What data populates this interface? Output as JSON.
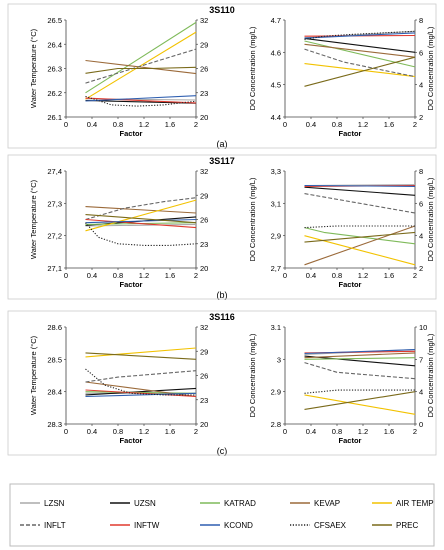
{
  "figure": {
    "panels": [
      {
        "title": "3S110",
        "label": "(a)"
      },
      {
        "title": "3S117",
        "label": "(b)"
      },
      {
        "title": "3S116",
        "label": "(c)"
      }
    ],
    "legend_title": "",
    "legend": [
      {
        "name": "LZSN",
        "color": "#aaaaaa",
        "dash": "solid"
      },
      {
        "name": "UZSN",
        "color": "#111111",
        "dash": "solid"
      },
      {
        "name": "KATRAD",
        "color": "#7fba5a",
        "dash": "solid"
      },
      {
        "name": "KEVAP",
        "color": "#9b6a3a",
        "dash": "solid"
      },
      {
        "name": "AIR TEMP",
        "color": "#f2c200",
        "dash": "solid"
      },
      {
        "name": "INFLT",
        "color": "#666666",
        "dash": "dashed"
      },
      {
        "name": "INFTW",
        "color": "#e03a2f",
        "dash": "solid"
      },
      {
        "name": "KCOND",
        "color": "#2f5fb0",
        "dash": "solid"
      },
      {
        "name": "CFSAEX",
        "color": "#222222",
        "dash": "dotted"
      },
      {
        "name": "PREC",
        "color": "#7a6a1a",
        "dash": "solid"
      }
    ]
  },
  "chart_data": [
    {
      "type": "line",
      "panel": "3S110",
      "side": "left",
      "xlabel": "Factor",
      "ylabel": "Water Temperature (°C)",
      "y2label": "",
      "xlim": [
        0,
        2
      ],
      "xticks": [
        "0",
        "0.4",
        "0.8",
        "1.2",
        "1.6",
        "2"
      ],
      "ylim": [
        26.1,
        26.5
      ],
      "yticks": [
        "26.1",
        "26.2",
        "26.3",
        "26.4",
        "26.5"
      ],
      "y2lim": [
        20,
        32
      ],
      "y2ticks": [
        "20",
        "23",
        "26",
        "29",
        "32"
      ],
      "x": [
        0.3,
        2
      ],
      "series": [
        {
          "name": "LZSN",
          "axis": "left",
          "values": [
            26.175,
            26.17
          ]
        },
        {
          "name": "UZSN",
          "axis": "left",
          "values": [
            26.168,
            26.157
          ]
        },
        {
          "name": "KATRAD",
          "axis": "left",
          "values": [
            26.2,
            26.49
          ]
        },
        {
          "name": "KEVAP",
          "axis": "left",
          "values": [
            26.333,
            26.279
          ]
        },
        {
          "name": "AIR TEMP",
          "axis": "right",
          "values": [
            22.2,
            30.5
          ]
        },
        {
          "name": "INFLT",
          "axis": "left",
          "values": [
            26.24,
            26.38
          ]
        },
        {
          "name": "INFTW",
          "axis": "left",
          "values": [
            26.178,
            26.158
          ]
        },
        {
          "name": "KCOND",
          "axis": "left",
          "values": [
            26.166,
            26.188
          ]
        },
        {
          "name": "CFSAEX",
          "axis": "left",
          "x": [
            0.3,
            0.7,
            1.1,
            1.5,
            2
          ],
          "values": [
            26.185,
            26.15,
            26.145,
            26.15,
            26.165
          ]
        },
        {
          "name": "PREC",
          "axis": "left",
          "x": [
            0.3,
            0.8,
            1.3,
            2
          ],
          "values": [
            26.28,
            26.3,
            26.3,
            26.305
          ]
        }
      ]
    },
    {
      "type": "line",
      "panel": "3S110",
      "side": "right",
      "xlabel": "Factor",
      "ylabel": "DO Concentration (mg/L)",
      "y2label": "DO Concentration (mg/L)",
      "xlim": [
        0,
        2
      ],
      "xticks": [
        "0",
        "0.4",
        "0.8",
        "1.2",
        "1.6",
        "2"
      ],
      "ylim": [
        4.4,
        4.7
      ],
      "yticks": [
        "4.4",
        "4.5",
        "4.6",
        "4.7"
      ],
      "y2lim": [
        2,
        8
      ],
      "y2ticks": [
        "2",
        "4",
        "6",
        "8"
      ],
      "x": [
        0.3,
        2
      ],
      "series": [
        {
          "name": "LZSN",
          "axis": "left",
          "values": [
            4.645,
            4.665
          ]
        },
        {
          "name": "UZSN",
          "axis": "left",
          "values": [
            4.643,
            4.6
          ]
        },
        {
          "name": "KATRAD",
          "axis": "left",
          "values": [
            4.635,
            4.555
          ]
        },
        {
          "name": "KEVAP",
          "axis": "left",
          "values": [
            4.625,
            4.585
          ]
        },
        {
          "name": "AIR TEMP",
          "axis": "left",
          "values": [
            4.565,
            4.525
          ]
        },
        {
          "name": "INFLT",
          "axis": "left",
          "x": [
            0.3,
            0.9,
            1.5,
            2
          ],
          "values": [
            4.61,
            4.57,
            4.545,
            4.525
          ]
        },
        {
          "name": "INFTW",
          "axis": "left",
          "values": [
            4.65,
            4.652
          ]
        },
        {
          "name": "KCOND",
          "axis": "left",
          "values": [
            4.644,
            4.66
          ]
        },
        {
          "name": "CFSAEX",
          "axis": "left",
          "x": [
            0.3,
            0.6,
            1,
            1.5,
            2
          ],
          "values": [
            4.64,
            4.65,
            4.655,
            4.66,
            4.665
          ]
        },
        {
          "name": "PREC",
          "axis": "left",
          "values": [
            4.495,
            4.585
          ]
        }
      ]
    },
    {
      "type": "line",
      "panel": "3S117",
      "side": "left",
      "xlabel": "Factor",
      "ylabel": "Water Temperature (°C)",
      "y2label": "",
      "xlim": [
        0,
        2
      ],
      "xticks": [
        "0",
        "0.4",
        "0.8",
        "1.2",
        "1.6",
        "2"
      ],
      "ylim": [
        27.1,
        27.4
      ],
      "yticks": [
        "27,1",
        "27,2",
        "27,3",
        "27,4"
      ],
      "y2lim": [
        20,
        32
      ],
      "y2ticks": [
        "20",
        "23",
        "26",
        "29",
        "32"
      ],
      "x": [
        0.3,
        2
      ],
      "series": [
        {
          "name": "LZSN",
          "axis": "left",
          "values": [
            27.23,
            27.235
          ]
        },
        {
          "name": "UZSN",
          "axis": "left",
          "values": [
            27.232,
            27.258
          ]
        },
        {
          "name": "KATRAD",
          "axis": "left",
          "values": [
            27.235,
            27.24
          ]
        },
        {
          "name": "KEVAP",
          "axis": "left",
          "values": [
            27.29,
            27.27
          ]
        },
        {
          "name": "AIR TEMP",
          "axis": "right",
          "values": [
            24.6,
            28.4
          ]
        },
        {
          "name": "INFLT",
          "axis": "right",
          "x": [
            0.3,
            0.9,
            1.5,
            2
          ],
          "values": [
            26.0,
            27.4,
            28.2,
            28.7
          ]
        },
        {
          "name": "INFTW",
          "axis": "left",
          "values": [
            27.25,
            27.225
          ]
        },
        {
          "name": "KCOND",
          "axis": "left",
          "values": [
            27.24,
            27.25
          ]
        },
        {
          "name": "CFSAEX",
          "axis": "left",
          "x": [
            0.3,
            0.5,
            0.8,
            1.2,
            1.6,
            2
          ],
          "values": [
            27.24,
            27.195,
            27.175,
            27.17,
            27.17,
            27.175
          ]
        },
        {
          "name": "PREC",
          "axis": "left",
          "values": [
            27.265,
            27.24
          ]
        }
      ]
    },
    {
      "type": "line",
      "panel": "3S117",
      "side": "right",
      "xlabel": "Factor",
      "ylabel": "DO Concentration (mg/L)",
      "y2label": "DO Concentration (mg/L)",
      "xlim": [
        0,
        2
      ],
      "xticks": [
        "0",
        "0.4",
        "0.8",
        "1.2",
        "1.6",
        "2"
      ],
      "ylim": [
        2.7,
        3.3
      ],
      "yticks": [
        "2,7",
        "2,9",
        "3,1",
        "3,3"
      ],
      "y2lim": [
        2,
        8
      ],
      "y2ticks": [
        "2",
        "4",
        "6",
        "8"
      ],
      "x": [
        0.3,
        2
      ],
      "series": [
        {
          "name": "LZSN",
          "axis": "left",
          "values": [
            3.21,
            3.215
          ]
        },
        {
          "name": "UZSN",
          "axis": "left",
          "values": [
            3.2,
            3.15
          ]
        },
        {
          "name": "KATRAD",
          "axis": "left",
          "x": [
            0.3,
            0.6,
            2
          ],
          "values": [
            2.95,
            2.92,
            2.85
          ]
        },
        {
          "name": "KEVAP",
          "axis": "left",
          "values": [
            2.72,
            2.96
          ]
        },
        {
          "name": "AIR TEMP",
          "axis": "left",
          "values": [
            2.9,
            2.72
          ]
        },
        {
          "name": "INFLT",
          "axis": "left",
          "values": [
            3.16,
            3.04
          ]
        },
        {
          "name": "INFTW",
          "axis": "left",
          "values": [
            3.205,
            3.21
          ]
        },
        {
          "name": "KCOND",
          "axis": "left",
          "values": [
            3.21,
            3.205
          ]
        },
        {
          "name": "CFSAEX",
          "axis": "left",
          "x": [
            0.3,
            0.8,
            1.4,
            2
          ],
          "values": [
            2.95,
            2.96,
            2.96,
            2.96
          ]
        },
        {
          "name": "PREC",
          "axis": "left",
          "values": [
            2.86,
            2.92
          ]
        }
      ]
    },
    {
      "type": "line",
      "panel": "3S116",
      "side": "left",
      "xlabel": "Factor",
      "ylabel": "Water Temperature (°C)",
      "y2label": "",
      "xlim": [
        0,
        2
      ],
      "xticks": [
        "0",
        "0.4",
        "0.8",
        "1.2",
        "1.6",
        "2"
      ],
      "ylim": [
        28.3,
        28.6
      ],
      "yticks": [
        "28.3",
        "28.4",
        "28.5",
        "28.6"
      ],
      "y2lim": [
        20,
        32
      ],
      "y2ticks": [
        "20",
        "23",
        "26",
        "29",
        "32"
      ],
      "x": [
        0.3,
        2
      ],
      "series": [
        {
          "name": "LZSN",
          "axis": "left",
          "values": [
            28.395,
            28.395
          ]
        },
        {
          "name": "UZSN",
          "axis": "left",
          "values": [
            28.39,
            28.41
          ]
        },
        {
          "name": "KATRAD",
          "axis": "left",
          "values": [
            28.4,
            28.395
          ]
        },
        {
          "name": "KEVAP",
          "axis": "left",
          "values": [
            28.43,
            28.385
          ]
        },
        {
          "name": "AIR TEMP",
          "axis": "right",
          "values": [
            28.3,
            29.4
          ]
        },
        {
          "name": "INFLT",
          "axis": "left",
          "x": [
            0.3,
            0.8,
            1.4,
            2
          ],
          "values": [
            28.43,
            28.445,
            28.455,
            28.465
          ]
        },
        {
          "name": "INFTW",
          "axis": "left",
          "values": [
            28.405,
            28.385
          ]
        },
        {
          "name": "KCOND",
          "axis": "left",
          "values": [
            28.385,
            28.395
          ]
        },
        {
          "name": "CFSAEX",
          "axis": "left",
          "x": [
            0.3,
            0.6,
            1,
            1.5,
            2
          ],
          "values": [
            28.47,
            28.42,
            28.395,
            28.39,
            28.39
          ]
        },
        {
          "name": "PREC",
          "axis": "left",
          "values": [
            28.52,
            28.5
          ]
        }
      ]
    },
    {
      "type": "line",
      "panel": "3S116",
      "side": "right",
      "xlabel": "Factor",
      "ylabel": "DO Concentration (mg/L)",
      "y2label": "DO Concentration (mg/L)",
      "xlim": [
        0,
        2
      ],
      "xticks": [
        "0",
        "0.4",
        "0.8",
        "1.2",
        "1.6",
        "2"
      ],
      "ylim": [
        2.8,
        3.1
      ],
      "yticks": [
        "2.8",
        "2.9",
        "3",
        "3.1"
      ],
      "y2lim": [
        0,
        10
      ],
      "y2ticks": [
        "0",
        "4",
        "7",
        "10"
      ],
      "x": [
        0.3,
        2
      ],
      "series": [
        {
          "name": "LZSN",
          "axis": "left",
          "values": [
            3.015,
            3.03
          ]
        },
        {
          "name": "UZSN",
          "axis": "left",
          "values": [
            3.01,
            2.98
          ]
        },
        {
          "name": "KATRAD",
          "axis": "left",
          "values": [
            3.0,
            3.005
          ]
        },
        {
          "name": "KEVAP",
          "axis": "left",
          "values": [
            3.005,
            3.02
          ]
        },
        {
          "name": "AIR TEMP",
          "axis": "left",
          "values": [
            2.89,
            2.83
          ]
        },
        {
          "name": "INFLT",
          "axis": "left",
          "x": [
            0.3,
            0.8,
            1.4,
            2
          ],
          "values": [
            2.99,
            2.96,
            2.95,
            2.94
          ]
        },
        {
          "name": "INFTW",
          "axis": "left",
          "values": [
            3.02,
            3.025
          ]
        },
        {
          "name": "KCOND",
          "axis": "left",
          "values": [
            3.018,
            3.03
          ]
        },
        {
          "name": "CFSAEX",
          "axis": "left",
          "x": [
            0.3,
            0.8,
            1.4,
            2
          ],
          "values": [
            2.895,
            2.905,
            2.905,
            2.905
          ]
        },
        {
          "name": "PREC",
          "axis": "left",
          "values": [
            2.845,
            2.9
          ]
        }
      ]
    }
  ]
}
